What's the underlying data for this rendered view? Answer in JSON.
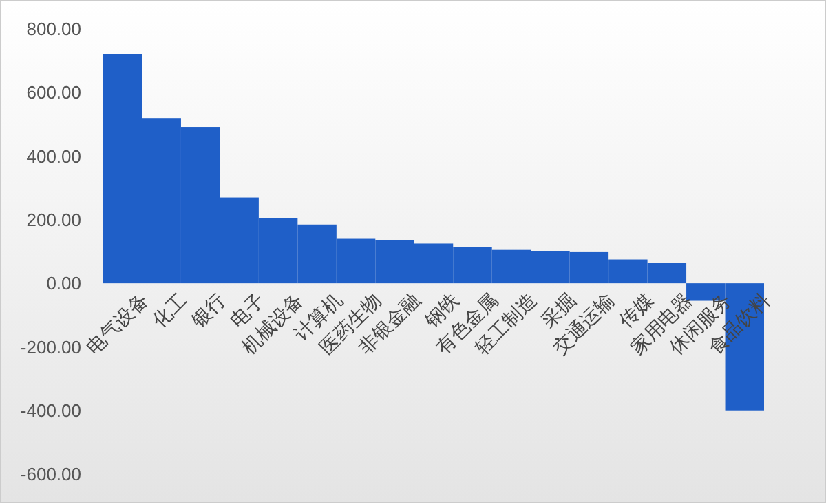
{
  "chart_data": {
    "type": "bar",
    "categories": [
      "电气设备",
      "化工",
      "银行",
      "电子",
      "机械设备",
      "计算机",
      "医药生物",
      "非银金融",
      "钢铁",
      "有色金属",
      "轻工制造",
      "采掘",
      "交通运输",
      "传媒",
      "家用电器",
      "休闲服务",
      "食品饮料"
    ],
    "values": [
      720,
      520,
      490,
      270,
      205,
      185,
      140,
      135,
      125,
      115,
      105,
      100,
      98,
      75,
      65,
      -55,
      -400
    ],
    "color": "#1f5fc8",
    "ylim": [
      -600,
      800
    ],
    "yticks": [
      {
        "value": -600,
        "label": "-600.00"
      },
      {
        "value": -400,
        "label": "-400.00"
      },
      {
        "value": -200,
        "label": "-200.00"
      },
      {
        "value": 0,
        "label": "0.00"
      },
      {
        "value": 200,
        "label": "200.00"
      },
      {
        "value": 400,
        "label": "400.00"
      },
      {
        "value": 600,
        "label": "600.00"
      },
      {
        "value": 800,
        "label": "800.00"
      }
    ],
    "grid": false
  }
}
